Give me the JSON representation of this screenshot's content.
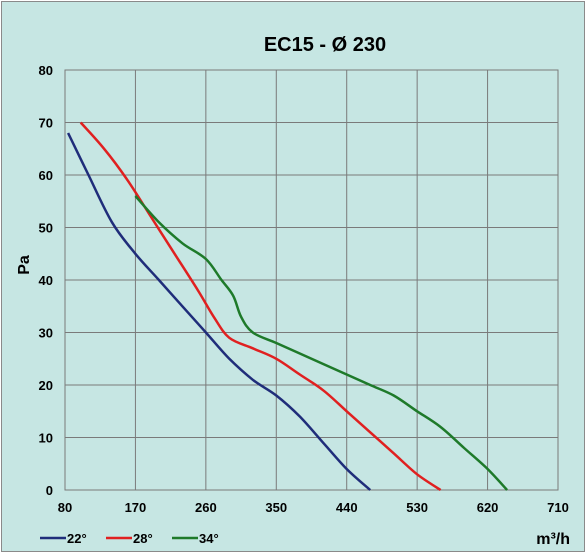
{
  "chart_data": {
    "type": "line",
    "title": "EC15 - Ø 230",
    "xlabel": "m³/h",
    "ylabel": "Pa",
    "xlim": [
      80,
      710
    ],
    "ylim": [
      0,
      80
    ],
    "x_ticks": [
      "80",
      "170",
      "260",
      "350",
      "440",
      "530",
      "620",
      "710"
    ],
    "y_ticks": [
      "0",
      "10",
      "20",
      "30",
      "40",
      "50",
      "60",
      "70",
      "80"
    ],
    "grid": true,
    "legend_position": "bottom-left",
    "series": [
      {
        "name": "22°",
        "color": "#1f2d7a",
        "points": [
          [
            84,
            68
          ],
          [
            110,
            60
          ],
          [
            140,
            51
          ],
          [
            170,
            45
          ],
          [
            200,
            40
          ],
          [
            230,
            35
          ],
          [
            260,
            30
          ],
          [
            290,
            25
          ],
          [
            320,
            21
          ],
          [
            350,
            18
          ],
          [
            380,
            14
          ],
          [
            410,
            9
          ],
          [
            440,
            4
          ],
          [
            470,
            0
          ]
        ]
      },
      {
        "name": "28°",
        "color": "#e02020",
        "points": [
          [
            100,
            70
          ],
          [
            130,
            65
          ],
          [
            160,
            59
          ],
          [
            190,
            52
          ],
          [
            220,
            45
          ],
          [
            250,
            38
          ],
          [
            270,
            33
          ],
          [
            290,
            29
          ],
          [
            320,
            27
          ],
          [
            350,
            25
          ],
          [
            380,
            22
          ],
          [
            410,
            19
          ],
          [
            440,
            15
          ],
          [
            470,
            11
          ],
          [
            500,
            7
          ],
          [
            530,
            3
          ],
          [
            560,
            0
          ]
        ]
      },
      {
        "name": "34°",
        "color": "#1e7a2a",
        "points": [
          [
            170,
            56
          ],
          [
            200,
            51
          ],
          [
            230,
            47
          ],
          [
            260,
            44
          ],
          [
            280,
            40
          ],
          [
            295,
            37
          ],
          [
            305,
            33
          ],
          [
            320,
            30
          ],
          [
            350,
            28
          ],
          [
            380,
            26
          ],
          [
            410,
            24
          ],
          [
            440,
            22
          ],
          [
            470,
            20
          ],
          [
            500,
            18
          ],
          [
            530,
            15
          ],
          [
            560,
            12
          ],
          [
            590,
            8
          ],
          [
            620,
            4
          ],
          [
            645,
            0
          ]
        ]
      }
    ]
  }
}
